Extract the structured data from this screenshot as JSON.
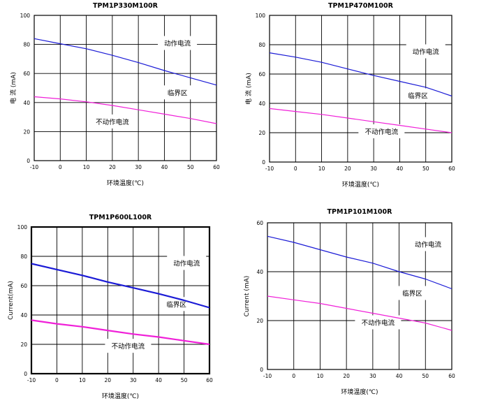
{
  "colors": {
    "upper_line": "#1b1bd6",
    "lower_line": "#f020d8",
    "grid": "#000000",
    "background": "#ffffff"
  },
  "chart_data": [
    {
      "type": "line",
      "title": "TPM1P330M100R",
      "xlabel": "环境温度(℃)",
      "ylabel": "电 流 (mA)",
      "xlim": [
        -10,
        60
      ],
      "ylim": [
        0,
        100
      ],
      "x_ticks": [
        "-10",
        "0",
        "10",
        "20",
        "30",
        "40",
        "50",
        "60"
      ],
      "y_ticks": [
        "0",
        "20",
        "40",
        "60",
        "80",
        "100"
      ],
      "grid": true,
      "series": [
        {
          "color": "#1b1bd6",
          "x": [
            -10,
            0,
            10,
            20,
            30,
            40,
            50,
            60
          ],
          "y": [
            84,
            80.5,
            77,
            72.5,
            67.5,
            62,
            57,
            52
          ]
        },
        {
          "color": "#f020d8",
          "x": [
            -10,
            0,
            10,
            20,
            30,
            40,
            50,
            60
          ],
          "y": [
            44,
            42.5,
            40.5,
            38,
            35,
            32,
            29,
            25.5
          ]
        }
      ],
      "annotations": [
        {
          "text": "动作电流",
          "x": 45,
          "y": 80.5
        },
        {
          "text": "临界区",
          "x": 45,
          "y": 46.5
        },
        {
          "text": "不动作电流",
          "x": 20,
          "y": 26.5
        }
      ]
    },
    {
      "type": "line",
      "title": "TPM1P470M100R",
      "xlabel": "环境温度(℃)",
      "ylabel": "电 流 (mA)",
      "xlim": [
        -10,
        60
      ],
      "ylim": [
        0,
        100
      ],
      "x_ticks": [
        "-10",
        "0",
        "10",
        "20",
        "30",
        "40",
        "50",
        "60"
      ],
      "y_ticks": [
        "0",
        "20",
        "40",
        "60",
        "80",
        "100"
      ],
      "grid": true,
      "series": [
        {
          "color": "#1b1bd6",
          "x": [
            -10,
            0,
            10,
            20,
            30,
            40,
            50,
            60
          ],
          "y": [
            74.5,
            71.5,
            68,
            63.5,
            59,
            55,
            51,
            45
          ]
        },
        {
          "color": "#f020d8",
          "x": [
            -10,
            0,
            10,
            20,
            30,
            40,
            50,
            60
          ],
          "y": [
            36.5,
            34.5,
            32.5,
            30,
            27.5,
            25,
            22.5,
            20
          ]
        }
      ],
      "annotations": [
        {
          "text": "动作电流",
          "x": 50,
          "y": 75
        },
        {
          "text": "临界区",
          "x": 47,
          "y": 45
        },
        {
          "text": "不动作电流",
          "x": 33,
          "y": 20.5
        }
      ]
    },
    {
      "type": "line",
      "title": "TPM1P600L100R",
      "xlabel": "环境温度(℃)",
      "ylabel": "Current(mA)",
      "xlim": [
        -10,
        60
      ],
      "ylim": [
        0,
        100
      ],
      "x_ticks": [
        "-10",
        "0",
        "10",
        "20",
        "30",
        "40",
        "50",
        "60"
      ],
      "y_ticks": [
        "0",
        "20",
        "40",
        "60",
        "80",
        "100"
      ],
      "grid": true,
      "series": [
        {
          "color": "#1b1bd6",
          "x": [
            -10,
            0,
            10,
            20,
            30,
            40,
            50,
            60
          ],
          "y": [
            75,
            71,
            67,
            62.5,
            58.5,
            54.5,
            50,
            45
          ]
        },
        {
          "color": "#f020d8",
          "x": [
            -10,
            0,
            10,
            20,
            30,
            40,
            50,
            60
          ],
          "y": [
            36.5,
            34,
            32,
            29.5,
            27,
            25,
            22.5,
            20
          ]
        }
      ],
      "annotations": [
        {
          "text": "动作电流",
          "x": 51,
          "y": 75
        },
        {
          "text": "临界区",
          "x": 47,
          "y": 47
        },
        {
          "text": "不动作电流",
          "x": 28,
          "y": 18.5
        }
      ]
    },
    {
      "type": "line",
      "title": "TPM1P101M100R",
      "xlabel": "环境温度(℃)",
      "ylabel": "Current (mA)",
      "xlim": [
        -10,
        60
      ],
      "ylim": [
        0,
        60
      ],
      "x_ticks": [
        "-10",
        "0",
        "10",
        "20",
        "30",
        "40",
        "50",
        "60"
      ],
      "y_ticks": [
        "0",
        "20",
        "40",
        "60"
      ],
      "grid": true,
      "series": [
        {
          "color": "#1b1bd6",
          "x": [
            -10,
            0,
            10,
            20,
            30,
            40,
            50,
            60
          ],
          "y": [
            54.5,
            52,
            49,
            46,
            43.5,
            40,
            37,
            33
          ]
        },
        {
          "color": "#f020d8",
          "x": [
            -10,
            0,
            10,
            20,
            30,
            40,
            50,
            60
          ],
          "y": [
            30,
            28.5,
            27,
            25,
            23,
            21,
            19,
            16
          ]
        }
      ],
      "annotations": [
        {
          "text": "动作电流",
          "x": 51,
          "y": 51
        },
        {
          "text": "临界区",
          "x": 45,
          "y": 31
        },
        {
          "text": "不动作电流",
          "x": 32,
          "y": 19
        }
      ]
    }
  ]
}
